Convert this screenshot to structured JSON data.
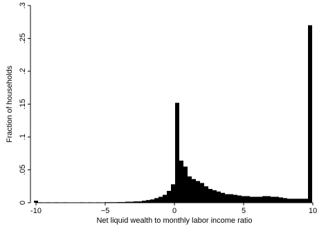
{
  "chart_data": {
    "type": "bar",
    "title": "",
    "xlabel": "Net liquid wealth to monthly labor income ratio",
    "ylabel": "Fraction of households",
    "xlim": [
      -10.4,
      10.2
    ],
    "ylim": [
      0,
      0.3
    ],
    "x_ticks": [
      {
        "value": -10,
        "label": "-10"
      },
      {
        "value": -5,
        "label": "−5"
      },
      {
        "value": 0,
        "label": "0"
      },
      {
        "value": 5,
        "label": "5"
      },
      {
        "value": 10,
        "label": "10"
      }
    ],
    "y_ticks": [
      {
        "value": 0,
        "label": "0"
      },
      {
        "value": 0.05,
        "label": ".05"
      },
      {
        "value": 0.1,
        "label": ".1"
      },
      {
        "value": 0.15,
        "label": ".15"
      },
      {
        "value": 0.2,
        "label": ".2"
      },
      {
        "value": 0.25,
        "label": ".25"
      },
      {
        "value": 0.3,
        "label": ".3"
      }
    ],
    "grid": false,
    "legend": "none",
    "bar_color": "#000000",
    "bin_width": 0.3,
    "bins": [
      {
        "x": -10.0,
        "y": 0.003
      },
      {
        "x": -9.7,
        "y": 0.0005
      },
      {
        "x": -9.1,
        "y": 0.0005
      },
      {
        "x": -8.5,
        "y": 0.0005
      },
      {
        "x": -7.9,
        "y": 0.0005
      },
      {
        "x": -6.7,
        "y": 0.0005
      },
      {
        "x": -6.1,
        "y": 0.0005
      },
      {
        "x": -5.5,
        "y": 0.0005
      },
      {
        "x": -4.9,
        "y": 0.0008
      },
      {
        "x": -4.6,
        "y": 0.0008
      },
      {
        "x": -4.3,
        "y": 0.0008
      },
      {
        "x": -4.0,
        "y": 0.001
      },
      {
        "x": -3.7,
        "y": 0.001
      },
      {
        "x": -3.4,
        "y": 0.0015
      },
      {
        "x": -3.1,
        "y": 0.0015
      },
      {
        "x": -2.8,
        "y": 0.002
      },
      {
        "x": -2.5,
        "y": 0.002
      },
      {
        "x": -2.2,
        "y": 0.003
      },
      {
        "x": -1.9,
        "y": 0.004
      },
      {
        "x": -1.6,
        "y": 0.005
      },
      {
        "x": -1.3,
        "y": 0.007
      },
      {
        "x": -1.0,
        "y": 0.009
      },
      {
        "x": -0.7,
        "y": 0.012
      },
      {
        "x": -0.4,
        "y": 0.018
      },
      {
        "x": -0.1,
        "y": 0.028
      },
      {
        "x": 0.2,
        "y": 0.152
      },
      {
        "x": 0.5,
        "y": 0.064
      },
      {
        "x": 0.8,
        "y": 0.055
      },
      {
        "x": 1.1,
        "y": 0.04
      },
      {
        "x": 1.4,
        "y": 0.036
      },
      {
        "x": 1.7,
        "y": 0.033
      },
      {
        "x": 2.0,
        "y": 0.03
      },
      {
        "x": 2.3,
        "y": 0.025
      },
      {
        "x": 2.6,
        "y": 0.021
      },
      {
        "x": 2.9,
        "y": 0.019
      },
      {
        "x": 3.2,
        "y": 0.017
      },
      {
        "x": 3.5,
        "y": 0.015
      },
      {
        "x": 3.8,
        "y": 0.013
      },
      {
        "x": 4.1,
        "y": 0.013
      },
      {
        "x": 4.4,
        "y": 0.012
      },
      {
        "x": 4.7,
        "y": 0.011
      },
      {
        "x": 5.0,
        "y": 0.01
      },
      {
        "x": 5.3,
        "y": 0.01
      },
      {
        "x": 5.6,
        "y": 0.009
      },
      {
        "x": 5.9,
        "y": 0.009
      },
      {
        "x": 6.2,
        "y": 0.009
      },
      {
        "x": 6.5,
        "y": 0.01
      },
      {
        "x": 6.8,
        "y": 0.01
      },
      {
        "x": 7.1,
        "y": 0.009
      },
      {
        "x": 7.4,
        "y": 0.009
      },
      {
        "x": 7.7,
        "y": 0.008
      },
      {
        "x": 8.0,
        "y": 0.007
      },
      {
        "x": 8.3,
        "y": 0.006
      },
      {
        "x": 8.6,
        "y": 0.006
      },
      {
        "x": 8.9,
        "y": 0.006
      },
      {
        "x": 9.2,
        "y": 0.006
      },
      {
        "x": 9.5,
        "y": 0.006
      },
      {
        "x": 9.8,
        "y": 0.27
      }
    ]
  }
}
